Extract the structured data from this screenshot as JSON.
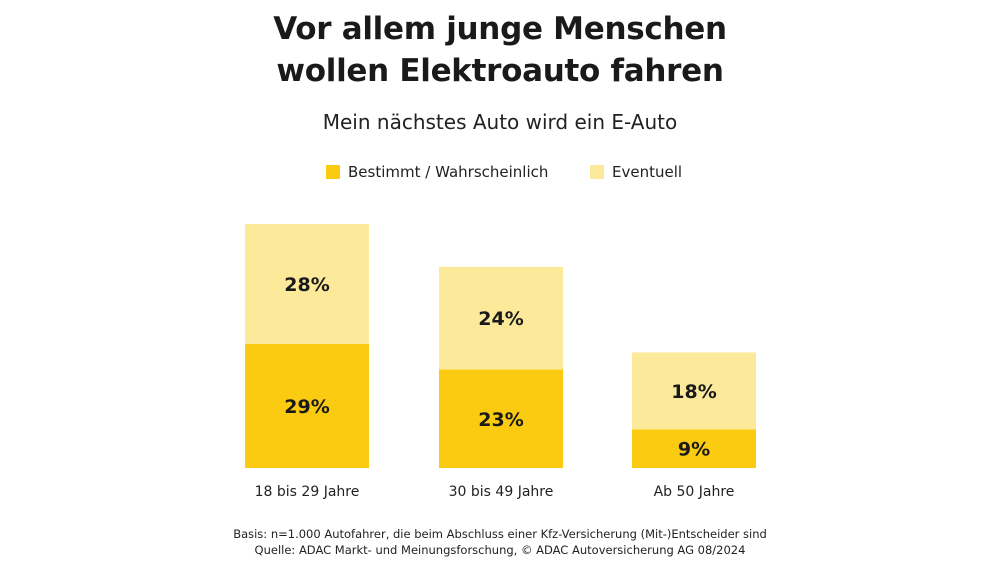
{
  "chart_data": {
    "type": "bar",
    "stacked": true,
    "title_line1": "Vor allem junge Menschen",
    "title_line2": "wollen Elektroauto fahren",
    "subtitle": "Mein nächstes Auto wird ein E-Auto",
    "categories": [
      "18 bis 29 Jahre",
      "30 bis 49 Jahre",
      "Ab 50 Jahre"
    ],
    "series": [
      {
        "name": "Bestimmt / Wahrscheinlich",
        "values": [
          29,
          23,
          9
        ],
        "color": "#FACB10"
      },
      {
        "name": "Eventuell",
        "values": [
          28,
          24,
          18
        ],
        "color": "#FCE99A"
      }
    ],
    "value_suffix": "%",
    "grid": false,
    "legend_position": "top"
  },
  "footer": {
    "line1": "Basis: n=1.000 Autofahrer, die beim Abschluss einer Kfz-Versicherung (Mit-)Entscheider sind",
    "line2": "Quelle: ADAC Markt- und Meinungsforschung, © ADAC Autoversicherung AG 08/2024"
  }
}
